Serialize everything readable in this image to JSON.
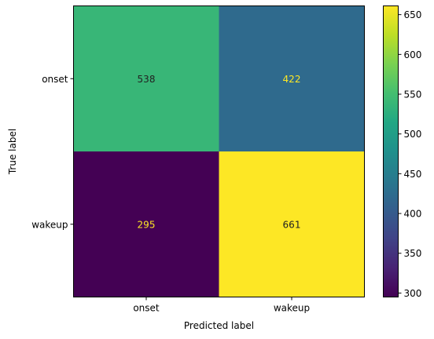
{
  "chart_data": {
    "type": "heatmap",
    "title": "",
    "xlabel": "Predicted label",
    "ylabel": "True label",
    "x_categories": [
      "onset",
      "wakeup"
    ],
    "y_categories": [
      "onset",
      "wakeup"
    ],
    "values": [
      [
        538,
        422
      ],
      [
        295,
        661
      ]
    ],
    "colormap": "viridis",
    "colorbar": {
      "range": [
        295,
        661
      ],
      "ticks": [
        300,
        350,
        400,
        450,
        500,
        550,
        600,
        650
      ]
    },
    "grid": false
  }
}
